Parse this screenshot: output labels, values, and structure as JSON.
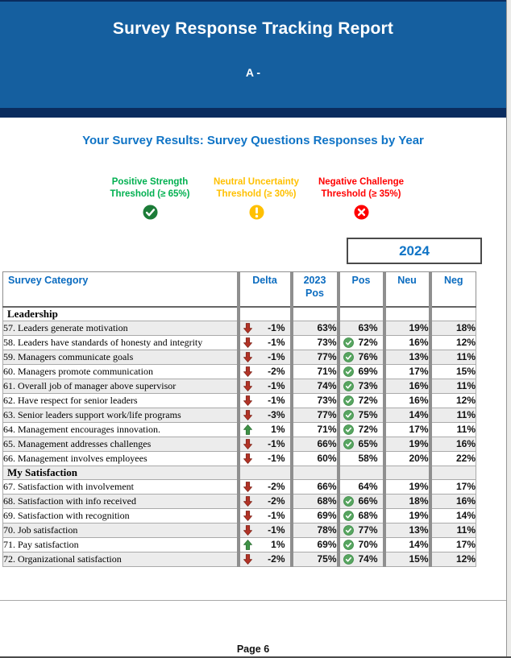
{
  "colors": {
    "banner_blue": "#155f9f",
    "banner_navy": "#0a2c5e",
    "accent_blue": "#1074c6",
    "header_text_blue": "#0b6cc0",
    "positive_green": "#00b050",
    "neutral_amber": "#ffc000",
    "negative_red": "#ff0000",
    "row_alt_gray": "#ececec"
  },
  "banner": {
    "title": "Survey Response Tracking Report",
    "subtitle": "A -"
  },
  "heading": "Your Survey Results: Survey Questions Responses by Year",
  "thresholds": [
    {
      "key": "positive",
      "line1": "Positive Strength",
      "line2": "Threshold (≥ 65%)",
      "icon": "check-circle",
      "color": "#00b050"
    },
    {
      "key": "neutral",
      "line1": "Neutral Uncertainty",
      "line2": "Threshold (≥ 30%)",
      "icon": "exclamation-circle",
      "color": "#ffc000"
    },
    {
      "key": "negative",
      "line1": "Negative Challenge",
      "line2": "Threshold (≥ 35%)",
      "icon": "x-circle",
      "color": "#ff0000"
    }
  ],
  "year_box": {
    "label": "2024"
  },
  "table": {
    "columns": {
      "category": "Survey Category",
      "delta": "Delta",
      "pos2023": "2023 Pos",
      "pos": "Pos",
      "neu": "Neu",
      "neg": "Neg"
    },
    "rows": [
      {
        "type": "section",
        "label": "Leadership"
      },
      {
        "type": "item",
        "label": "57. Leaders generate motivation",
        "delta_dir": "down",
        "delta": "-1%",
        "pos2023": "63%",
        "pos_check": false,
        "pos": "63%",
        "neu": "19%",
        "neg": "18%"
      },
      {
        "type": "item",
        "label": "58. Leaders have standards of honesty and integrity",
        "delta_dir": "down",
        "delta": "-1%",
        "pos2023": "73%",
        "pos_check": true,
        "pos": "72%",
        "neu": "16%",
        "neg": "12%"
      },
      {
        "type": "item",
        "label": "59. Managers communicate goals",
        "delta_dir": "down",
        "delta": "-1%",
        "pos2023": "77%",
        "pos_check": true,
        "pos": "76%",
        "neu": "13%",
        "neg": "11%"
      },
      {
        "type": "item",
        "label": "60. Managers promote communication",
        "delta_dir": "down",
        "delta": "-2%",
        "pos2023": "71%",
        "pos_check": true,
        "pos": "69%",
        "neu": "17%",
        "neg": "15%"
      },
      {
        "type": "item",
        "label": "61. Overall job of manager above supervisor",
        "delta_dir": "down",
        "delta": "-1%",
        "pos2023": "74%",
        "pos_check": true,
        "pos": "73%",
        "neu": "16%",
        "neg": "11%"
      },
      {
        "type": "item",
        "label": "62.  Have respect for senior leaders",
        "delta_dir": "down",
        "delta": "-1%",
        "pos2023": "73%",
        "pos_check": true,
        "pos": "72%",
        "neu": "16%",
        "neg": "12%"
      },
      {
        "type": "item",
        "label": "63. Senior leaders support work/life programs",
        "delta_dir": "down",
        "delta": "-3%",
        "pos2023": "77%",
        "pos_check": true,
        "pos": "75%",
        "neu": "14%",
        "neg": "11%"
      },
      {
        "type": "item",
        "label": "64. Management encourages innovation.",
        "delta_dir": "up",
        "delta": "1%",
        "pos2023": "71%",
        "pos_check": true,
        "pos": "72%",
        "neu": "17%",
        "neg": "11%"
      },
      {
        "type": "item",
        "label": "65. Management addresses challenges",
        "delta_dir": "down",
        "delta": "-1%",
        "pos2023": "66%",
        "pos_check": true,
        "pos": "65%",
        "neu": "19%",
        "neg": "16%"
      },
      {
        "type": "item",
        "label": "66. Management involves employees",
        "delta_dir": "down",
        "delta": "-1%",
        "pos2023": "60%",
        "pos_check": false,
        "pos": "58%",
        "neu": "20%",
        "neg": "22%"
      },
      {
        "type": "section",
        "label": "My Satisfaction"
      },
      {
        "type": "item",
        "label": "67. Satisfaction with involvement",
        "delta_dir": "down",
        "delta": "-2%",
        "pos2023": "66%",
        "pos_check": false,
        "pos": "64%",
        "neu": "19%",
        "neg": "17%"
      },
      {
        "type": "item",
        "label": "68. Satisfaction with info received",
        "delta_dir": "down",
        "delta": "-2%",
        "pos2023": "68%",
        "pos_check": true,
        "pos": "66%",
        "neu": "18%",
        "neg": "16%"
      },
      {
        "type": "item",
        "label": "69. Satisfaction with recognition",
        "delta_dir": "down",
        "delta": "-1%",
        "pos2023": "69%",
        "pos_check": true,
        "pos": "68%",
        "neu": "19%",
        "neg": "14%"
      },
      {
        "type": "item",
        "label": "70. Job satisfaction",
        "delta_dir": "down",
        "delta": "-1%",
        "pos2023": "78%",
        "pos_check": true,
        "pos": "77%",
        "neu": "13%",
        "neg": "11%"
      },
      {
        "type": "item",
        "label": "71. Pay satisfaction",
        "delta_dir": "up",
        "delta": "1%",
        "pos2023": "69%",
        "pos_check": true,
        "pos": "70%",
        "neu": "14%",
        "neg": "17%"
      },
      {
        "type": "item",
        "label": "72. Organizational satisfaction",
        "delta_dir": "down",
        "delta": "-2%",
        "pos2023": "75%",
        "pos_check": true,
        "pos": "74%",
        "neu": "15%",
        "neg": "12%"
      }
    ]
  },
  "footer": {
    "page_label": "Page 6"
  }
}
